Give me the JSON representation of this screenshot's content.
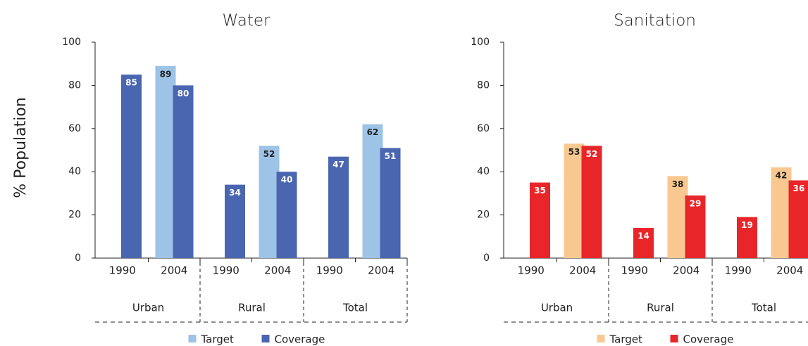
{
  "chart_data": [
    {
      "type": "bar",
      "title": "Water",
      "y_label": "% Population",
      "categories": [
        "1990",
        "2004",
        "1990",
        "2004",
        "1990",
        "2004"
      ],
      "groups": [
        "Urban",
        "Rural",
        "Total"
      ],
      "series": [
        {
          "name": "Target",
          "color": "#9dc3e6",
          "values": [
            null,
            89,
            null,
            52,
            null,
            62
          ]
        },
        {
          "name": "Coverage",
          "color": "#4a66b0",
          "values": [
            85,
            80,
            34,
            40,
            47,
            51
          ]
        }
      ],
      "ylim": [
        0,
        100
      ],
      "yticks": [
        0,
        20,
        40,
        60,
        80,
        100
      ]
    },
    {
      "type": "bar",
      "title": "Sanitation",
      "categories": [
        "1990",
        "2004",
        "1990",
        "2004",
        "1990",
        "2004"
      ],
      "groups": [
        "Urban",
        "Rural",
        "Total"
      ],
      "series": [
        {
          "name": "Target",
          "color": "#f9c891",
          "values": [
            null,
            53,
            null,
            38,
            null,
            42
          ]
        },
        {
          "name": "Coverage",
          "color": "#e8262a",
          "values": [
            35,
            52,
            14,
            29,
            19,
            36
          ]
        }
      ],
      "ylim": [
        0,
        100
      ],
      "yticks": [
        0,
        20,
        40,
        60,
        80,
        100
      ]
    }
  ]
}
